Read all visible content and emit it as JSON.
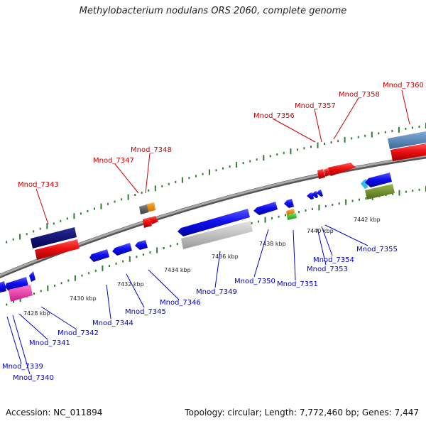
{
  "header": {
    "title": "Methylobacterium nodulans ORS 2060, complete genome"
  },
  "footer": {
    "accession": "Accession: NC_011894",
    "summary": "Topology: circular; Length: 7,772,460 bp; Genes: 7,447"
  },
  "colors": {
    "backbone": "#8c8c8c",
    "tick": "#2e7d32",
    "top_label": "#cc0000",
    "bottom_label": "#0000cc"
  },
  "kbp_labels": [
    "7428 kbp",
    "7430 kbp",
    "7432 kbp",
    "7434 kbp",
    "7436 kbp",
    "7438 kbp",
    "7440 kbp",
    "7442 kbp"
  ],
  "top_gene_labels": [
    "Mnod_7343",
    "Mnod_7347",
    "Mnod_7348",
    "Mnod_7356",
    "Mnod_7357",
    "Mnod_7358",
    "Mnod_7360"
  ],
  "bottom_gene_labels": [
    "Mnod_7339",
    "Mnod_7340",
    "Mnod_7341",
    "Mnod_7342",
    "Mnod_7344",
    "Mnod_7345",
    "Mnod_7346",
    "Mnod_7349",
    "Mnod_7350",
    "Mnod_7351",
    "Mnod_7353",
    "Mnod_7354",
    "Mnod_7355"
  ]
}
